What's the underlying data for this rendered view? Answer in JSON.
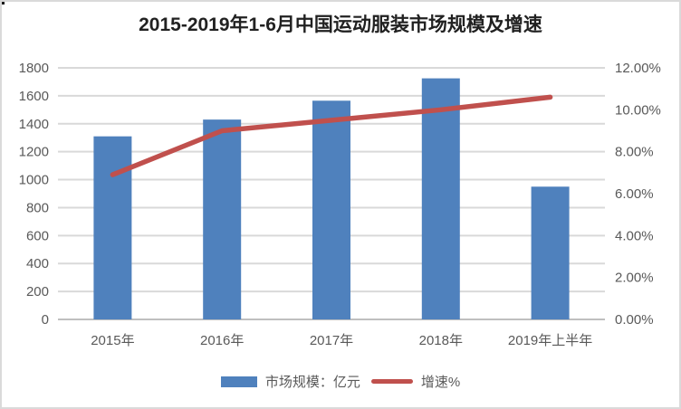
{
  "chart_data": {
    "type": "combo-bar-line",
    "title": "2015-2019年1-6月中国运动服装市场规模及增速",
    "categories": [
      "2015年",
      "2016年",
      "2017年",
      "2018年",
      "2019年上半年"
    ],
    "series": [
      {
        "name": "市场规模：亿元",
        "type": "bar",
        "axis": "left",
        "color": "#4F81BD",
        "values": [
          1310,
          1430,
          1565,
          1725,
          950
        ]
      },
      {
        "name": "增速%",
        "type": "line",
        "axis": "right",
        "color": "#C0504D",
        "values": [
          6.9,
          9.0,
          9.5,
          10.0,
          10.6
        ]
      }
    ],
    "left_axis": {
      "min": 0,
      "max": 1800,
      "step": 200,
      "tick_labels": [
        "0",
        "200",
        "400",
        "600",
        "800",
        "1000",
        "1200",
        "1400",
        "1600",
        "1800"
      ]
    },
    "right_axis": {
      "min": 0,
      "max": 12,
      "step": 2,
      "tick_labels": [
        "0.00%",
        "2.00%",
        "4.00%",
        "6.00%",
        "8.00%",
        "10.00%",
        "12.00%"
      ]
    },
    "grid": true,
    "legend_position": "bottom",
    "legend": [
      {
        "label": "市场规模：亿元",
        "swatch": "bar",
        "color": "#4F81BD"
      },
      {
        "label": "增速%",
        "swatch": "line",
        "color": "#C0504D"
      }
    ],
    "text_color": "#595959",
    "gridline_color": "#D9D9D9",
    "axisline_color": "#BFBFBF"
  }
}
